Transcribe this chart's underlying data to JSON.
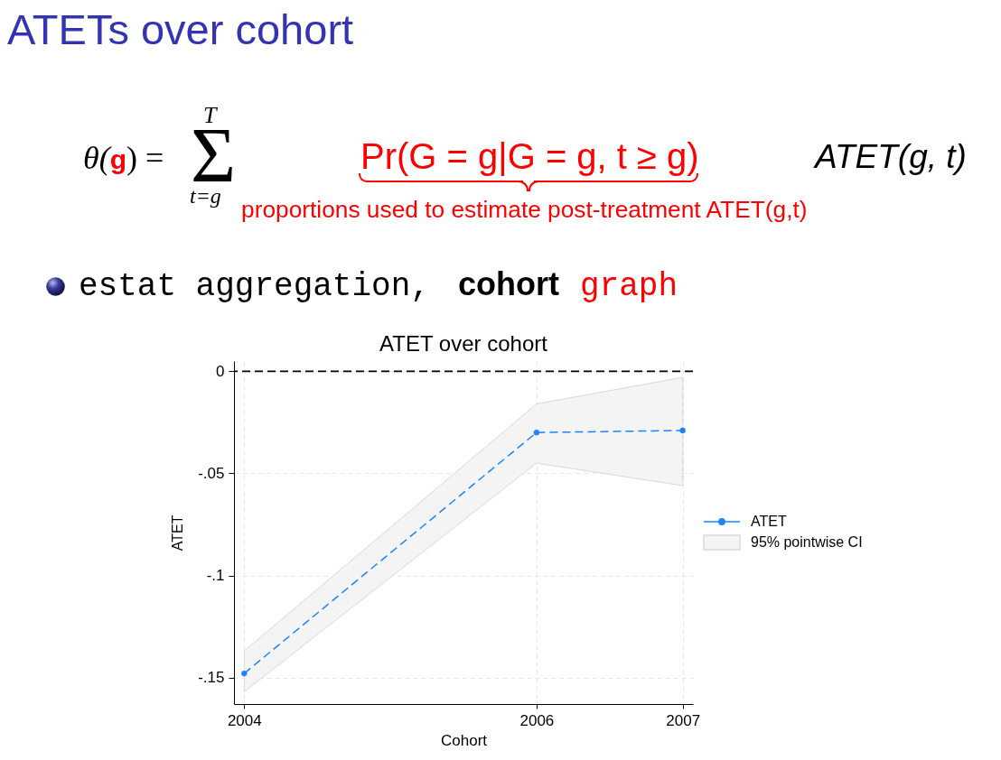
{
  "chart_data": {
    "type": "line",
    "title": "ATET over cohort",
    "xlabel": "Cohort",
    "ylabel": "ATET",
    "x": [
      2004,
      2006,
      2007
    ],
    "series": [
      {
        "name": "ATET",
        "color": "#1a85ff",
        "values": [
          -0.148,
          -0.03,
          -0.029
        ],
        "marker": "circle",
        "line_style": "dashed"
      },
      {
        "name": "95% pointwise CI",
        "type": "area",
        "color": "#f4f4f4",
        "values": [
          null,
          null,
          null
        ],
        "lower": [
          -0.157,
          -0.045,
          -0.056
        ],
        "upper": [
          -0.137,
          -0.016,
          -0.003
        ]
      }
    ],
    "xlim": [
      2003.93,
      2007.07
    ],
    "xticks": [
      2004,
      2006,
      2007
    ],
    "ylim": [
      -0.163,
      0.005
    ],
    "yticks": [
      {
        "value": -0.15,
        "label": "-.15"
      },
      {
        "value": -0.1,
        "label": "-.1"
      },
      {
        "value": -0.05,
        "label": "-.05"
      },
      0
    ],
    "ref_lines": [
      {
        "axis": "y",
        "value": 0,
        "color": "#000000",
        "line_style": "dashed"
      }
    ],
    "grid": true,
    "legend": "right",
    "annotations": [
      "ATETs over cohort",
      "θ(",
      "g",
      ") =",
      "Σ$^{T}$$_{t=g}$",
      "Pr(G = g|G = g, t ≥ g)",
      "ATET(g, t)",
      "proportions used to estimate post-treatment ATET(g,t)",
      "estat aggregation,",
      "cohort",
      "graph"
    ]
  }
}
